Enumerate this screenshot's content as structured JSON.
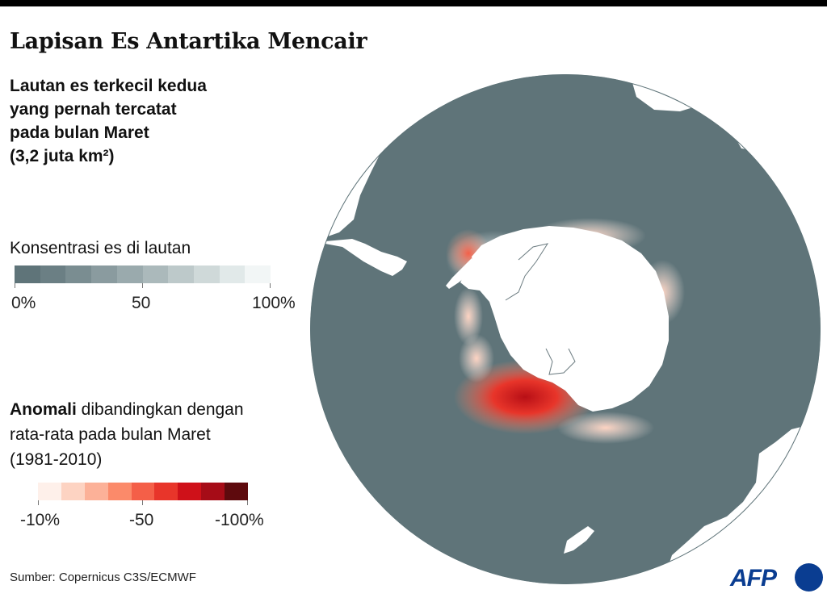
{
  "title": "Lapisan Es Antartika Mencair",
  "subtitle": [
    "Lautan es terkecil kedua",
    "yang pernah tercatat",
    "pada bulan Maret",
    "(3,2 juta km²)"
  ],
  "legend_concentration": {
    "title": "Konsentrasi es di lautan",
    "tick_labels": [
      "0%",
      "50",
      "100%"
    ],
    "colors": [
      "#5f7479",
      "#6b7f84",
      "#7a8d91",
      "#8a9b9f",
      "#9aaaad",
      "#abb9bb",
      "#bdc9ca",
      "#cfd9d9",
      "#e1e9e9",
      "#f2f6f6"
    ]
  },
  "legend_anomaly": {
    "title_bold": "Anomali",
    "title_rest": " dibandingkan dengan",
    "title_line2": "rata-rata pada bulan Maret",
    "title_line3": "(1981-2010)",
    "tick_labels": [
      "-10%",
      "-50",
      "-100%"
    ],
    "colors": [
      "#fef0ea",
      "#fdd3c2",
      "#fcb198",
      "#fb8a6a",
      "#f45f48",
      "#e8352a",
      "#cf1119",
      "#a60c17",
      "#5e0a0d"
    ]
  },
  "source": "Sumber: Copernicus C3S/ECMWF",
  "logo": "AFP",
  "map_colors": {
    "ocean": "#5f7479",
    "land": "#ffffff"
  }
}
